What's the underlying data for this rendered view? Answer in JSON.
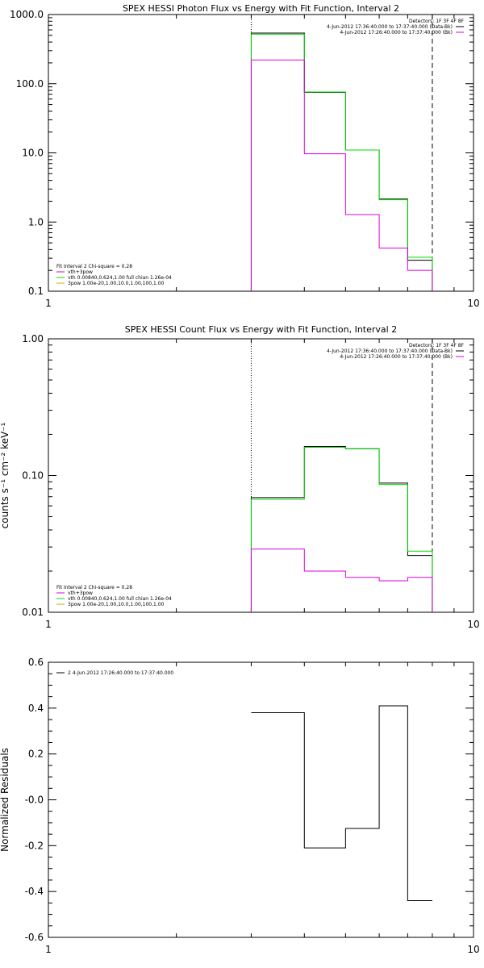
{
  "chart_data": [
    {
      "type": "line",
      "id": "photon",
      "title": "SPEX HESSI Photon Flux vs Energy with Fit Function, Interval 2",
      "ylabel": "",
      "xscale": "log",
      "yscale": "log",
      "xlim": [
        1,
        10
      ],
      "ylim": [
        0.1,
        1000
      ],
      "xticks": [
        {
          "v": 1,
          "t": "1"
        },
        {
          "v": 10,
          "t": "10"
        }
      ],
      "yticks": [
        {
          "v": 0.1,
          "t": "0.1"
        },
        {
          "v": 1,
          "t": "1.0"
        },
        {
          "v": 10,
          "t": "10.0"
        },
        {
          "v": 100,
          "t": "100.0"
        },
        {
          "v": 1000,
          "t": "1000.0"
        }
      ],
      "bin_edges": [
        3.0,
        4.0,
        5.0,
        6.0,
        7.0,
        8.0
      ],
      "vlines": [
        {
          "x": 3.0,
          "style": "dotted"
        },
        {
          "x": 8.0,
          "style": "dashed"
        }
      ],
      "series": [
        {
          "color": "#000000",
          "values": [
            540,
            75,
            11,
            2.15,
            0.28
          ]
        },
        {
          "color": "#00dd00",
          "values": [
            520,
            76,
            11,
            2.1,
            0.31
          ]
        },
        {
          "color": "#dd00dd",
          "values": [
            220,
            9.7,
            1.28,
            0.42,
            0.2
          ]
        }
      ],
      "header_lines": [
        "Detectors: 1F 3F 4F 8F",
        "4-Jun-2012 17:36:40.000 to 17:37:40.000 (Data-Bk)",
        "4-Jun-2012 17:26:40.000 to 17:37:40.000 (Bk)"
      ],
      "header_colors": [
        "#000000",
        "#000000",
        "#dd00dd"
      ],
      "legend_lines": [
        "Fit Interval 2  Chi-square = 0.28",
        "vth+3pow",
        "vth 0.00840,0.624,1.00  full chian 1.26e-04",
        "3pow 1.00e-20,1.00,10.0,1.00,100,1.00"
      ],
      "legend_colors": [
        "",
        "#dd00dd",
        "#00dd00",
        "#ddaa00"
      ]
    },
    {
      "type": "line",
      "id": "count",
      "title": "SPEX HESSI Count Flux vs Energy with Fit Function, Interval 2",
      "ylabel": "counts s⁻¹ cm⁻² keV⁻¹",
      "xscale": "log",
      "yscale": "log",
      "xlim": [
        1,
        10
      ],
      "ylim": [
        0.01,
        1.0
      ],
      "xticks": [
        {
          "v": 1,
          "t": "1"
        },
        {
          "v": 10,
          "t": "10"
        }
      ],
      "yticks": [
        {
          "v": 0.01,
          "t": "0.01"
        },
        {
          "v": 0.1,
          "t": "0.10"
        },
        {
          "v": 1.0,
          "t": "1.00"
        }
      ],
      "bin_edges": [
        3.0,
        4.0,
        5.0,
        6.0,
        7.0,
        8.0
      ],
      "vlines": [
        {
          "x": 3.0,
          "style": "dotted"
        },
        {
          "x": 8.0,
          "style": "dashed"
        }
      ],
      "series": [
        {
          "color": "#000000",
          "values": [
            0.069,
            0.163,
            0.157,
            0.088,
            0.026
          ]
        },
        {
          "color": "#00dd00",
          "values": [
            0.067,
            0.161,
            0.157,
            0.086,
            0.028
          ]
        },
        {
          "color": "#dd00dd",
          "values": [
            0.029,
            0.02,
            0.018,
            0.017,
            0.018
          ]
        }
      ],
      "header_lines": [
        "Detectors: 1F 3F 4F 8F",
        "4-Jun-2012 17:36:40.000 to 17:37:40.000 (Data-Bk)",
        "4-Jun-2012 17:26:40.000 to 17:37:40.000 (Bk)"
      ],
      "header_colors": [
        "#000000",
        "#000000",
        "#dd00dd"
      ],
      "legend_lines": [
        "Fit Interval 2  Chi-square = 0.28",
        "vth+3pow",
        "vth 0.00840,0.624,1.00  full chian 1.26e-04",
        "3pow 1.00e-20,1.00,10.0,1.00,100,1.00"
      ],
      "legend_colors": [
        "",
        "#dd00dd",
        "#00dd00",
        "#ddaa00"
      ]
    },
    {
      "type": "line",
      "id": "resid",
      "title": "",
      "ylabel": "Normalized Residuals",
      "xscale": "log",
      "yscale": "linear",
      "xlim": [
        1,
        10
      ],
      "ylim": [
        -0.6,
        0.6
      ],
      "xticks": [
        {
          "v": 1,
          "t": "1"
        },
        {
          "v": 10,
          "t": "10"
        }
      ],
      "yticks": [
        {
          "v": -0.6,
          "t": "-0.6"
        },
        {
          "v": -0.4,
          "t": "-0.4"
        },
        {
          "v": -0.2,
          "t": "-0.2"
        },
        {
          "v": 0.0,
          "t": "-0.0"
        },
        {
          "v": 0.2,
          "t": "0.2"
        },
        {
          "v": 0.4,
          "t": "0.4"
        },
        {
          "v": 0.6,
          "t": "0.6"
        }
      ],
      "bin_edges": [
        3.0,
        4.0,
        5.0,
        6.0,
        7.0,
        8.0
      ],
      "vlines": [],
      "series": [
        {
          "color": "#000000",
          "values": [
            0.38,
            -0.21,
            -0.125,
            0.41,
            -0.44
          ]
        }
      ],
      "header_lines": [],
      "header_colors": [],
      "legend_lines": [
        "2  4-Jun-2012 17:26:40.000 to 17:37:40.000"
      ],
      "legend_colors": [
        "#000000"
      ]
    }
  ]
}
